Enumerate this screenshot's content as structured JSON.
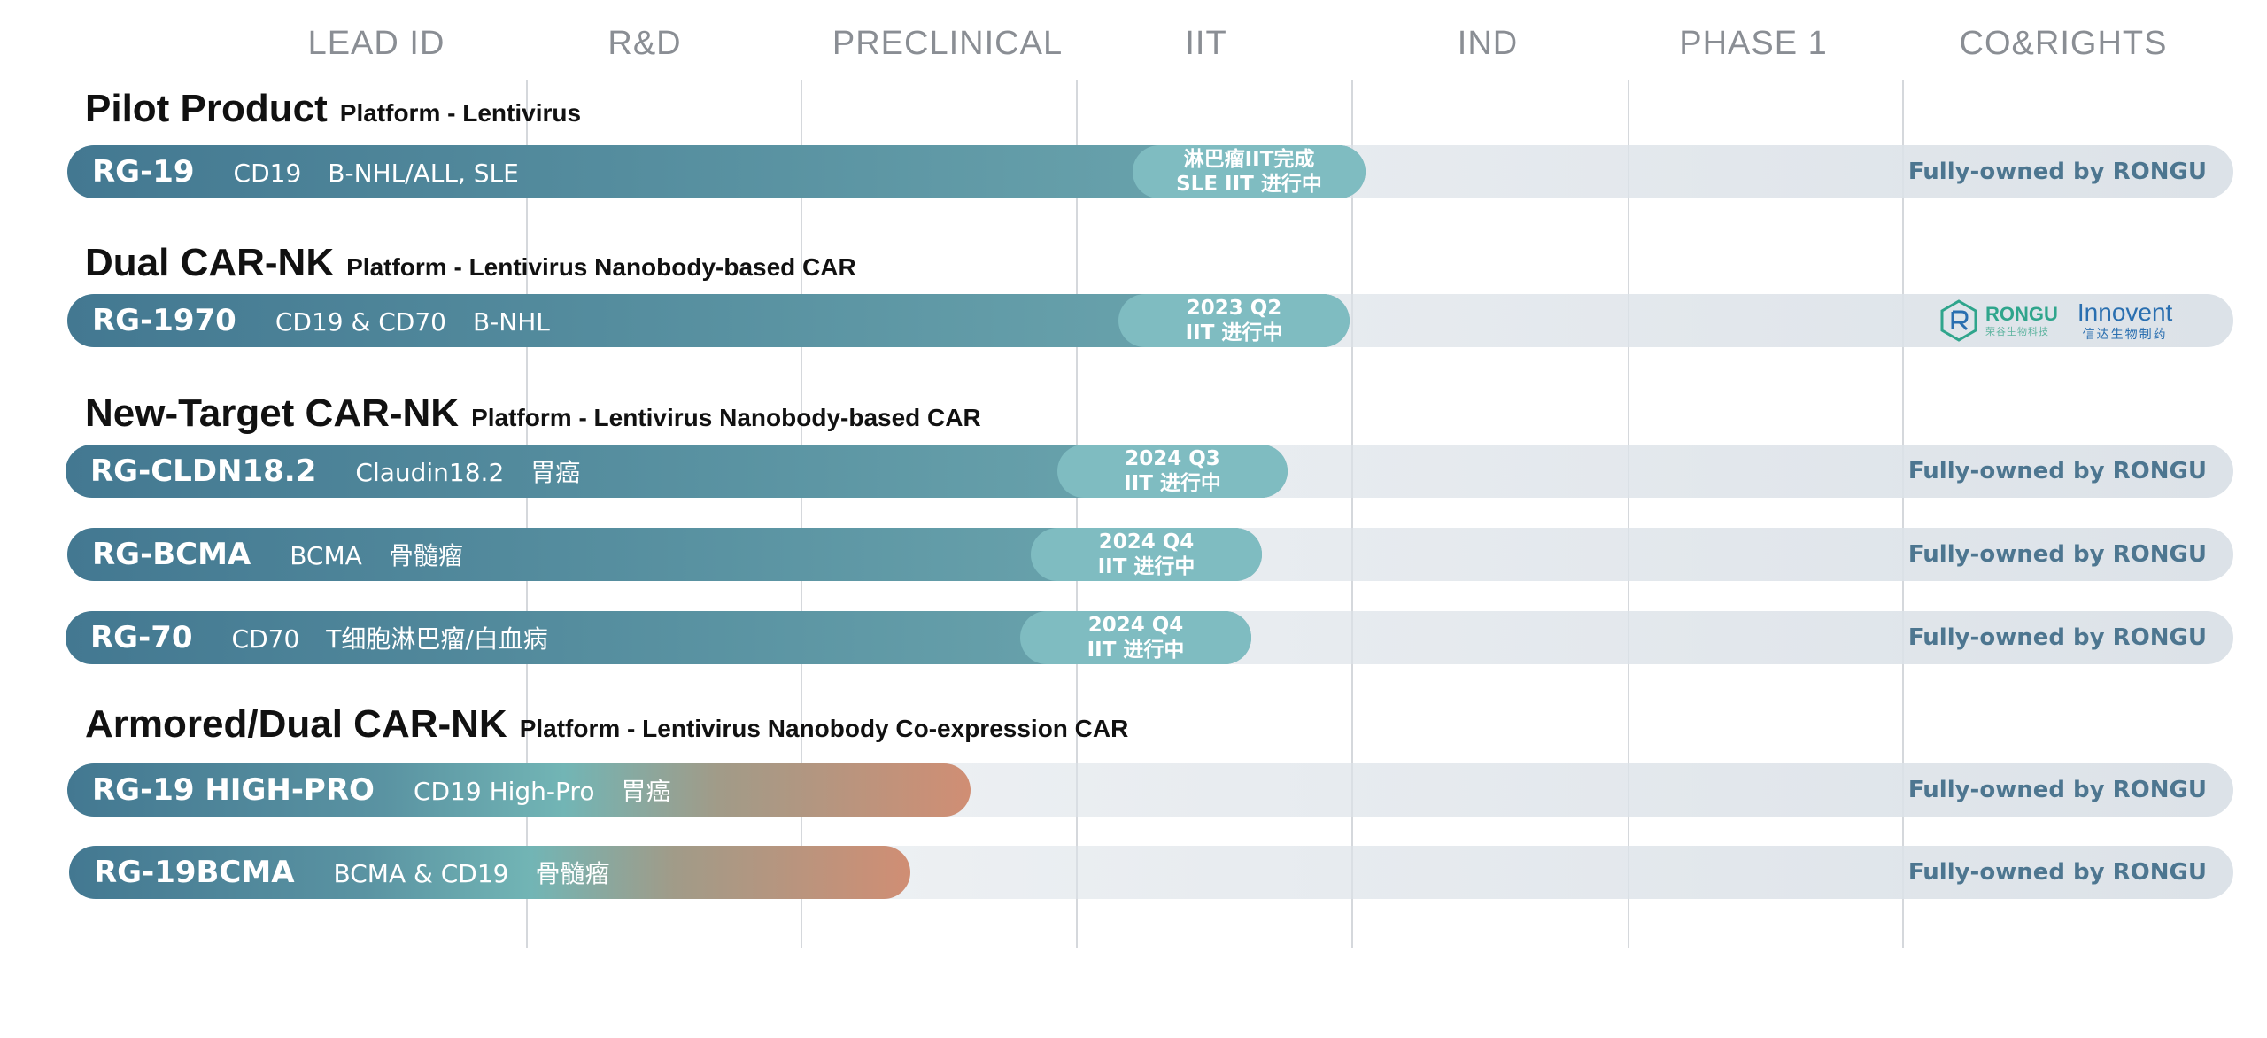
{
  "columns": [
    "LEAD ID",
    "R&D",
    "PRECLINICAL",
    "IIT",
    "IND",
    "PHASE 1",
    "CO&RIGHTS"
  ],
  "sections": [
    {
      "name": "Pilot Product",
      "platform": "Platform - Lentivirus",
      "programs": [
        {
          "code": "RG-19",
          "target": "CD19",
          "indication": "B-NHL/ALL, SLE",
          "status_line1": "淋巴瘤IIT完成",
          "status_line2": "SLE IIT 进行中",
          "rights": "Fully-owned by RONGU",
          "bar_style": "teal"
        }
      ]
    },
    {
      "name": "Dual CAR-NK",
      "platform": "Platform - Lentivirus Nanobody-based CAR",
      "programs": [
        {
          "code": "RG-1970",
          "target": "CD19 & CD70",
          "indication": "B-NHL",
          "status_line1": "2023 Q2",
          "status_line2": "IIT 进行中",
          "rights": "",
          "partner_logos": [
            "rongu-logo",
            "innovent-logo"
          ],
          "bar_style": "teal"
        }
      ]
    },
    {
      "name": "New-Target CAR-NK",
      "platform": "Platform - Lentivirus Nanobody-based CAR",
      "programs": [
        {
          "code": "RG-CLDN18.2",
          "target": "Claudin18.2",
          "indication": "胃癌",
          "status_line1": "2024 Q3",
          "status_line2": "IIT 进行中",
          "rights": "Fully-owned by RONGU",
          "bar_style": "teal"
        },
        {
          "code": "RG-BCMA",
          "target": "BCMA",
          "indication": "骨髓瘤",
          "status_line1": "2024 Q4",
          "status_line2": "IIT 进行中",
          "rights": "Fully-owned by RONGU",
          "bar_style": "teal"
        },
        {
          "code": "RG-70",
          "target": "CD70",
          "indication": "T细胞淋巴瘤/白血病",
          "status_line1": "2024 Q4",
          "status_line2": "IIT 进行中",
          "rights": "Fully-owned by RONGU",
          "bar_style": "teal"
        }
      ]
    },
    {
      "name": "Armored/Dual CAR-NK",
      "platform": "Platform - Lentivirus Nanobody Co-expression CAR",
      "programs": [
        {
          "code": "RG-19 HIGH-PRO",
          "target": "CD19 High-Pro",
          "indication": "胃癌",
          "status_line1": "",
          "status_line2": "",
          "rights": "Fully-owned by RONGU",
          "bar_style": "armored"
        },
        {
          "code": "RG-19BCMA",
          "target": "BCMA & CD19",
          "indication": "骨髓瘤",
          "status_line1": "",
          "status_line2": "",
          "rights": "Fully-owned by RONGU",
          "bar_style": "armored"
        }
      ]
    }
  ],
  "partners": {
    "rongu_name": "RONGU",
    "rongu_sub": "荣谷生物科技",
    "innovent_name": "Innovent",
    "innovent_sub": "信达生物制药"
  },
  "colors": {
    "bar_start": "#437891",
    "bar_end": "#6fa9b0",
    "status_pill": "#7fbcc1",
    "armored_end": "#d08e74",
    "rights_text": "#4d7690"
  }
}
